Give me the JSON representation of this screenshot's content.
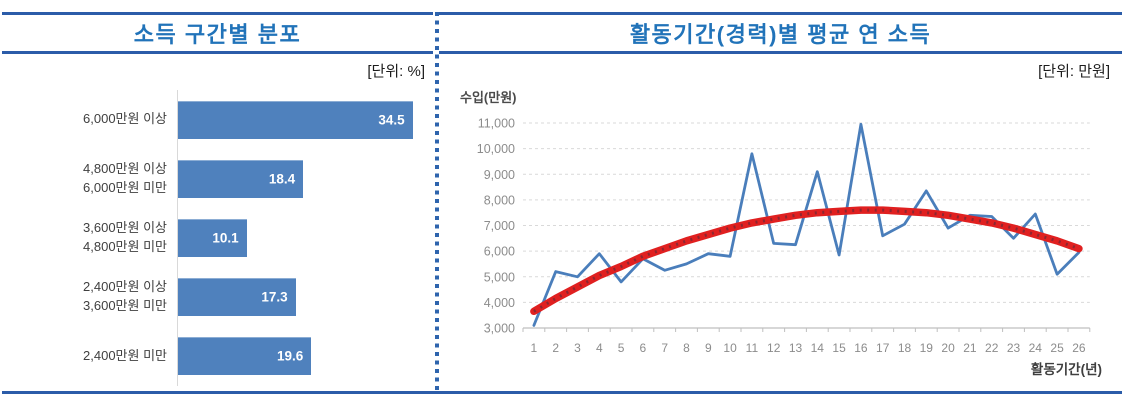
{
  "page": {
    "rule_color": "#2b5ca9",
    "divider_color": "#2e64ad",
    "title_color": "#2173b9"
  },
  "chart_data": [
    {
      "type": "bar",
      "orientation": "horizontal",
      "title": "소득 구간별 분포",
      "unit": "[단위: %]",
      "categories": [
        [
          "6,000만원 이상"
        ],
        [
          "4,800만원 이상",
          "6,000만원 미만"
        ],
        [
          "3,600만원 이상",
          "4,800만원 미만"
        ],
        [
          "2,400만원 이상",
          "3,600만원 미만"
        ],
        [
          "2,400만원 미만"
        ]
      ],
      "values": [
        34.5,
        18.4,
        10.1,
        17.3,
        19.6
      ],
      "xlim": [
        0,
        35
      ],
      "bar_color": "#4f81bd",
      "value_label_color": "#ffffff",
      "grid": "off"
    },
    {
      "type": "line",
      "title": "활동기간(경력)별 평균 연 소득",
      "unit": "[단위: 만원]",
      "ylabel": "수입(만원)",
      "xlabel": "활동기간(년)",
      "x": [
        1,
        2,
        3,
        4,
        5,
        6,
        7,
        8,
        9,
        10,
        11,
        12,
        13,
        14,
        15,
        16,
        17,
        18,
        19,
        20,
        21,
        22,
        23,
        24,
        25,
        26
      ],
      "series": [
        {
          "name": "평균 연 소득",
          "color": "#4a7ebb",
          "values": [
            3100,
            5200,
            5000,
            5900,
            4800,
            5700,
            5250,
            5500,
            5900,
            5800,
            9800,
            6300,
            6250,
            9100,
            5850,
            10950,
            6600,
            7050,
            8350,
            6900,
            7400,
            7350,
            6500,
            7450,
            5100,
            5950
          ]
        },
        {
          "name": "추세선",
          "color": "#e02020",
          "style": "thick-dotted",
          "values": [
            3650,
            4150,
            4600,
            5050,
            5400,
            5800,
            6100,
            6400,
            6650,
            6900,
            7100,
            7250,
            7400,
            7500,
            7550,
            7600,
            7600,
            7550,
            7500,
            7400,
            7250,
            7100,
            6900,
            6650,
            6400,
            6100
          ]
        }
      ],
      "ylim": [
        3000,
        11000
      ],
      "ytick_step": 1000,
      "yticks": [
        "3,000",
        "4,000",
        "5,000",
        "6,000",
        "7,000",
        "8,000",
        "9,000",
        "10,000",
        "11,000"
      ],
      "grid": "dashed",
      "grid_color": "#d9d9d9",
      "axis_color": "#bfbfbf",
      "tick_text_color": "#8c8c8c",
      "legend": "none"
    }
  ]
}
